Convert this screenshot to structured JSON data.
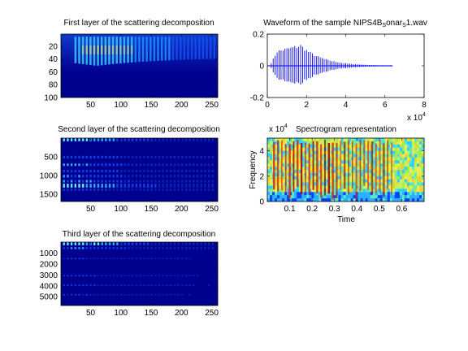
{
  "chart_data": [
    {
      "type": "heatmap",
      "title": "First layer of the scattering decomposition",
      "xlim": [
        1,
        260
      ],
      "ylim": [
        1,
        100
      ],
      "xticks": [
        50,
        100,
        150,
        200,
        250
      ],
      "yticks": [
        20,
        40,
        60,
        80,
        100
      ],
      "xtick_labels": [
        "50",
        "100",
        "150",
        "200",
        "250"
      ],
      "ytick_labels": [
        "20",
        "40",
        "60",
        "80",
        "100"
      ],
      "colormap": "jet",
      "background_color": "#00008f"
    },
    {
      "type": "line",
      "title": "Waveform of the sample NIPS4B_S onar_S 1.wav",
      "title_main": "Waveform of the sample NIPS4B",
      "title_sub1": "S",
      "title_mid": "onar",
      "title_sub2": "S",
      "title_end": "1.wav",
      "xlim": [
        0,
        80000
      ],
      "ylim": [
        -0.2,
        0.2
      ],
      "xticks": [
        0,
        20000,
        40000,
        60000,
        80000
      ],
      "yticks": [
        -0.2,
        0,
        0.2
      ],
      "xtick_labels": [
        "0",
        "2",
        "4",
        "6",
        "8"
      ],
      "ytick_labels": [
        "-0.2",
        "0",
        "0.2"
      ],
      "x_multiplier": "x 10",
      "x_multiplier_exp": "4",
      "line_color": "#0000ff",
      "signal_extent": [
        0,
        64000
      ]
    },
    {
      "type": "heatmap",
      "title": "Second layer of the scattering decomposition",
      "xlim": [
        1,
        260
      ],
      "ylim": [
        1,
        1700
      ],
      "xticks": [
        50,
        100,
        150,
        200,
        250
      ],
      "yticks": [
        500,
        1000,
        1500
      ],
      "xtick_labels": [
        "50",
        "100",
        "150",
        "200",
        "250"
      ],
      "ytick_labels": [
        "500",
        "1000",
        "1500"
      ],
      "colormap": "jet",
      "background_color": "#00008f"
    },
    {
      "type": "heatmap",
      "title": "Spectrogram representation",
      "xlabel": "Time",
      "ylabel": "Frequency",
      "xlim": [
        0,
        0.7
      ],
      "ylim": [
        0,
        50000
      ],
      "xticks": [
        0.1,
        0.2,
        0.3,
        0.4,
        0.5,
        0.6
      ],
      "yticks": [
        0,
        20000,
        40000
      ],
      "xtick_labels": [
        "0.1",
        "0.2",
        "0.3",
        "0.4",
        "0.5",
        "0.6"
      ],
      "ytick_labels": [
        "0",
        "2",
        "4"
      ],
      "y_multiplier": "x 10",
      "y_multiplier_exp": "4",
      "colormap": "jet"
    },
    {
      "type": "heatmap",
      "title": "Third layer of the scattering decomposition",
      "xlim": [
        1,
        260
      ],
      "ylim": [
        1,
        5800
      ],
      "xticks": [
        50,
        100,
        150,
        200,
        250
      ],
      "yticks": [
        1000,
        2000,
        3000,
        4000,
        5000
      ],
      "xtick_labels": [
        "50",
        "100",
        "150",
        "200",
        "250"
      ],
      "ytick_labels": [
        "1000",
        "2000",
        "3000",
        "4000",
        "5000"
      ],
      "colormap": "jet",
      "background_color": "#00008f"
    }
  ]
}
